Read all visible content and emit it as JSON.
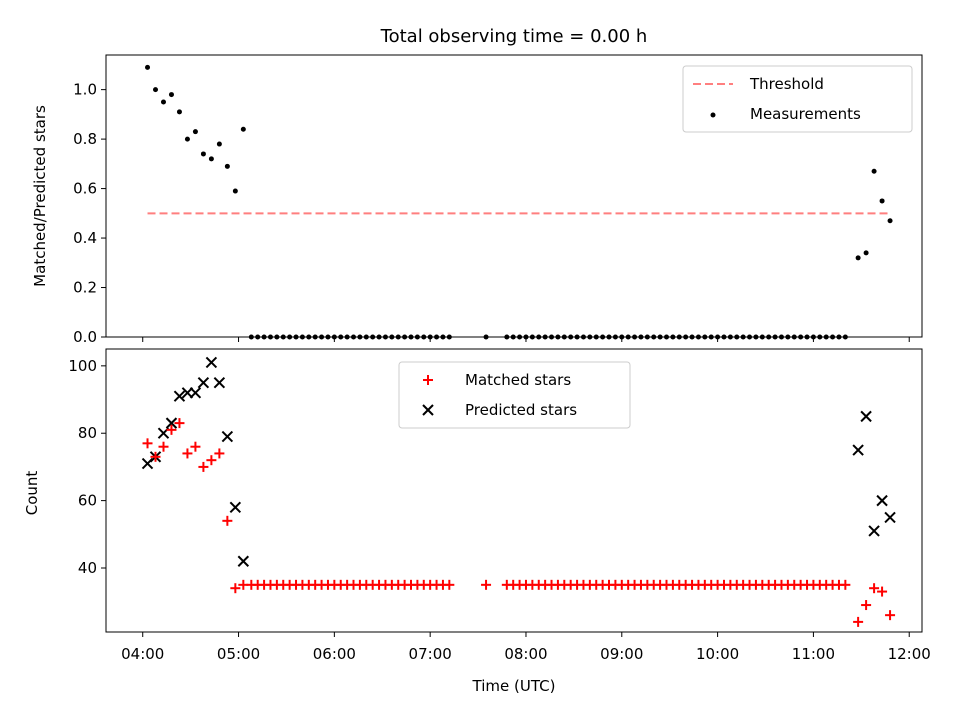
{
  "colors": {
    "threshold": "#ff7f7f",
    "measurements": "#000000",
    "matched": "#ff0000",
    "predicted": "#000000"
  },
  "chart_data": [
    {
      "type": "scatter",
      "title": "Total observing time = 0.00 h",
      "xlabel": "",
      "ylabel": "Matched/Predicted stars",
      "ylim": [
        0,
        1.14
      ],
      "xlim": [
        "03:37",
        "12:08"
      ],
      "x_ticks": [
        "04:00",
        "05:00",
        "06:00",
        "07:00",
        "08:00",
        "09:00",
        "10:00",
        "11:00",
        "12:00"
      ],
      "y_ticks": [
        "0.0",
        "0.2",
        "0.4",
        "0.6",
        "0.8",
        "1.0"
      ],
      "legend_position": "top-right",
      "threshold": {
        "name": "Threshold",
        "y": 0.5,
        "x_start": "04:03",
        "x_end": "11:48"
      },
      "series": [
        {
          "name": "Measurements",
          "marker": "dot",
          "points": [
            [
              "04:03",
              1.09
            ],
            [
              "04:08",
              1.0
            ],
            [
              "04:13",
              0.95
            ],
            [
              "04:18",
              0.98
            ],
            [
              "04:23",
              0.91
            ],
            [
              "04:28",
              0.8
            ],
            [
              "04:33",
              0.83
            ],
            [
              "04:38",
              0.74
            ],
            [
              "04:43",
              0.72
            ],
            [
              "04:48",
              0.78
            ],
            [
              "04:53",
              0.69
            ],
            [
              "04:58",
              0.59
            ],
            [
              "05:03",
              0.84
            ],
            [
              "05:08",
              0.0
            ],
            [
              "05:12",
              0.0
            ],
            [
              "05:16",
              0.0
            ],
            [
              "05:20",
              0.0
            ],
            [
              "05:24",
              0.0
            ],
            [
              "05:28",
              0.0
            ],
            [
              "05:32",
              0.0
            ],
            [
              "05:36",
              0.0
            ],
            [
              "05:40",
              0.0
            ],
            [
              "05:44",
              0.0
            ],
            [
              "05:48",
              0.0
            ],
            [
              "05:52",
              0.0
            ],
            [
              "05:56",
              0.0
            ],
            [
              "06:00",
              0.0
            ],
            [
              "06:04",
              0.0
            ],
            [
              "06:08",
              0.0
            ],
            [
              "06:12",
              0.0
            ],
            [
              "06:16",
              0.0
            ],
            [
              "06:20",
              0.0
            ],
            [
              "06:24",
              0.0
            ],
            [
              "06:28",
              0.0
            ],
            [
              "06:32",
              0.0
            ],
            [
              "06:36",
              0.0
            ],
            [
              "06:40",
              0.0
            ],
            [
              "06:44",
              0.0
            ],
            [
              "06:48",
              0.0
            ],
            [
              "06:52",
              0.0
            ],
            [
              "06:56",
              0.0
            ],
            [
              "07:00",
              0.0
            ],
            [
              "07:04",
              0.0
            ],
            [
              "07:08",
              0.0
            ],
            [
              "07:12",
              0.0
            ],
            [
              "07:35",
              0.0
            ],
            [
              "07:48",
              0.0
            ],
            [
              "07:52",
              0.0
            ],
            [
              "07:56",
              0.0
            ],
            [
              "08:00",
              0.0
            ],
            [
              "08:04",
              0.0
            ],
            [
              "08:08",
              0.0
            ],
            [
              "08:12",
              0.0
            ],
            [
              "08:16",
              0.0
            ],
            [
              "08:20",
              0.0
            ],
            [
              "08:24",
              0.0
            ],
            [
              "08:28",
              0.0
            ],
            [
              "08:32",
              0.0
            ],
            [
              "08:36",
              0.0
            ],
            [
              "08:40",
              0.0
            ],
            [
              "08:44",
              0.0
            ],
            [
              "08:48",
              0.0
            ],
            [
              "08:52",
              0.0
            ],
            [
              "08:56",
              0.0
            ],
            [
              "09:00",
              0.0
            ],
            [
              "09:04",
              0.0
            ],
            [
              "09:08",
              0.0
            ],
            [
              "09:12",
              0.0
            ],
            [
              "09:16",
              0.0
            ],
            [
              "09:20",
              0.0
            ],
            [
              "09:24",
              0.0
            ],
            [
              "09:28",
              0.0
            ],
            [
              "09:32",
              0.0
            ],
            [
              "09:36",
              0.0
            ],
            [
              "09:40",
              0.0
            ],
            [
              "09:44",
              0.0
            ],
            [
              "09:48",
              0.0
            ],
            [
              "09:52",
              0.0
            ],
            [
              "09:56",
              0.0
            ],
            [
              "10:00",
              0.0
            ],
            [
              "10:04",
              0.0
            ],
            [
              "10:08",
              0.0
            ],
            [
              "10:12",
              0.0
            ],
            [
              "10:16",
              0.0
            ],
            [
              "10:20",
              0.0
            ],
            [
              "10:24",
              0.0
            ],
            [
              "10:28",
              0.0
            ],
            [
              "10:32",
              0.0
            ],
            [
              "10:36",
              0.0
            ],
            [
              "10:40",
              0.0
            ],
            [
              "10:44",
              0.0
            ],
            [
              "10:48",
              0.0
            ],
            [
              "10:52",
              0.0
            ],
            [
              "10:56",
              0.0
            ],
            [
              "11:00",
              0.0
            ],
            [
              "11:04",
              0.0
            ],
            [
              "11:08",
              0.0
            ],
            [
              "11:12",
              0.0
            ],
            [
              "11:16",
              0.0
            ],
            [
              "11:20",
              0.0
            ],
            [
              "11:28",
              0.32
            ],
            [
              "11:33",
              0.34
            ],
            [
              "11:38",
              0.67
            ],
            [
              "11:43",
              0.55
            ],
            [
              "11:48",
              0.47
            ]
          ]
        }
      ]
    },
    {
      "type": "scatter",
      "title": "",
      "xlabel": "Time (UTC)",
      "ylabel": "Count",
      "ylim": [
        21,
        105
      ],
      "xlim": [
        "03:37",
        "12:08"
      ],
      "x_ticks": [
        "04:00",
        "05:00",
        "06:00",
        "07:00",
        "08:00",
        "09:00",
        "10:00",
        "11:00",
        "12:00"
      ],
      "y_ticks": [
        "40",
        "60",
        "80",
        "100"
      ],
      "legend_position": "top-center",
      "series": [
        {
          "name": "Matched stars",
          "marker": "plus",
          "points": [
            [
              "04:03",
              77
            ],
            [
              "04:08",
              73
            ],
            [
              "04:13",
              76
            ],
            [
              "04:18",
              81
            ],
            [
              "04:23",
              83
            ],
            [
              "04:28",
              74
            ],
            [
              "04:33",
              76
            ],
            [
              "04:38",
              70
            ],
            [
              "04:43",
              72
            ],
            [
              "04:48",
              74
            ],
            [
              "04:53",
              54
            ],
            [
              "04:58",
              34
            ],
            [
              "05:03",
              35
            ],
            [
              "05:08",
              35
            ],
            [
              "05:12",
              35
            ],
            [
              "05:16",
              35
            ],
            [
              "05:20",
              35
            ],
            [
              "05:24",
              35
            ],
            [
              "05:28",
              35
            ],
            [
              "05:32",
              35
            ],
            [
              "05:36",
              35
            ],
            [
              "05:40",
              35
            ],
            [
              "05:44",
              35
            ],
            [
              "05:48",
              35
            ],
            [
              "05:52",
              35
            ],
            [
              "05:56",
              35
            ],
            [
              "06:00",
              35
            ],
            [
              "06:04",
              35
            ],
            [
              "06:08",
              35
            ],
            [
              "06:12",
              35
            ],
            [
              "06:16",
              35
            ],
            [
              "06:20",
              35
            ],
            [
              "06:24",
              35
            ],
            [
              "06:28",
              35
            ],
            [
              "06:32",
              35
            ],
            [
              "06:36",
              35
            ],
            [
              "06:40",
              35
            ],
            [
              "06:44",
              35
            ],
            [
              "06:48",
              35
            ],
            [
              "06:52",
              35
            ],
            [
              "06:56",
              35
            ],
            [
              "07:00",
              35
            ],
            [
              "07:04",
              35
            ],
            [
              "07:08",
              35
            ],
            [
              "07:12",
              35
            ],
            [
              "07:35",
              35
            ],
            [
              "07:48",
              35
            ],
            [
              "07:52",
              35
            ],
            [
              "07:56",
              35
            ],
            [
              "08:00",
              35
            ],
            [
              "08:04",
              35
            ],
            [
              "08:08",
              35
            ],
            [
              "08:12",
              35
            ],
            [
              "08:16",
              35
            ],
            [
              "08:20",
              35
            ],
            [
              "08:24",
              35
            ],
            [
              "08:28",
              35
            ],
            [
              "08:32",
              35
            ],
            [
              "08:36",
              35
            ],
            [
              "08:40",
              35
            ],
            [
              "08:44",
              35
            ],
            [
              "08:48",
              35
            ],
            [
              "08:52",
              35
            ],
            [
              "08:56",
              35
            ],
            [
              "09:00",
              35
            ],
            [
              "09:04",
              35
            ],
            [
              "09:08",
              35
            ],
            [
              "09:12",
              35
            ],
            [
              "09:16",
              35
            ],
            [
              "09:20",
              35
            ],
            [
              "09:24",
              35
            ],
            [
              "09:28",
              35
            ],
            [
              "09:32",
              35
            ],
            [
              "09:36",
              35
            ],
            [
              "09:40",
              35
            ],
            [
              "09:44",
              35
            ],
            [
              "09:48",
              35
            ],
            [
              "09:52",
              35
            ],
            [
              "09:56",
              35
            ],
            [
              "10:00",
              35
            ],
            [
              "10:04",
              35
            ],
            [
              "10:08",
              35
            ],
            [
              "10:12",
              35
            ],
            [
              "10:16",
              35
            ],
            [
              "10:20",
              35
            ],
            [
              "10:24",
              35
            ],
            [
              "10:28",
              35
            ],
            [
              "10:32",
              35
            ],
            [
              "10:36",
              35
            ],
            [
              "10:40",
              35
            ],
            [
              "10:44",
              35
            ],
            [
              "10:48",
              35
            ],
            [
              "10:52",
              35
            ],
            [
              "10:56",
              35
            ],
            [
              "11:00",
              35
            ],
            [
              "11:04",
              35
            ],
            [
              "11:08",
              35
            ],
            [
              "11:12",
              35
            ],
            [
              "11:16",
              35
            ],
            [
              "11:20",
              35
            ],
            [
              "11:28",
              24
            ],
            [
              "11:33",
              29
            ],
            [
              "11:38",
              34
            ],
            [
              "11:43",
              33
            ],
            [
              "11:48",
              26
            ]
          ]
        },
        {
          "name": "Predicted stars",
          "marker": "cross",
          "points": [
            [
              "04:03",
              71
            ],
            [
              "04:08",
              73
            ],
            [
              "04:13",
              80
            ],
            [
              "04:18",
              83
            ],
            [
              "04:23",
              91
            ],
            [
              "04:28",
              92
            ],
            [
              "04:33",
              92
            ],
            [
              "04:38",
              95
            ],
            [
              "04:43",
              101
            ],
            [
              "04:48",
              95
            ],
            [
              "04:53",
              79
            ],
            [
              "04:58",
              58
            ],
            [
              "05:03",
              42
            ],
            [
              "11:28",
              75
            ],
            [
              "11:33",
              85
            ],
            [
              "11:38",
              51
            ],
            [
              "11:43",
              60
            ],
            [
              "11:48",
              55
            ]
          ]
        }
      ]
    }
  ]
}
